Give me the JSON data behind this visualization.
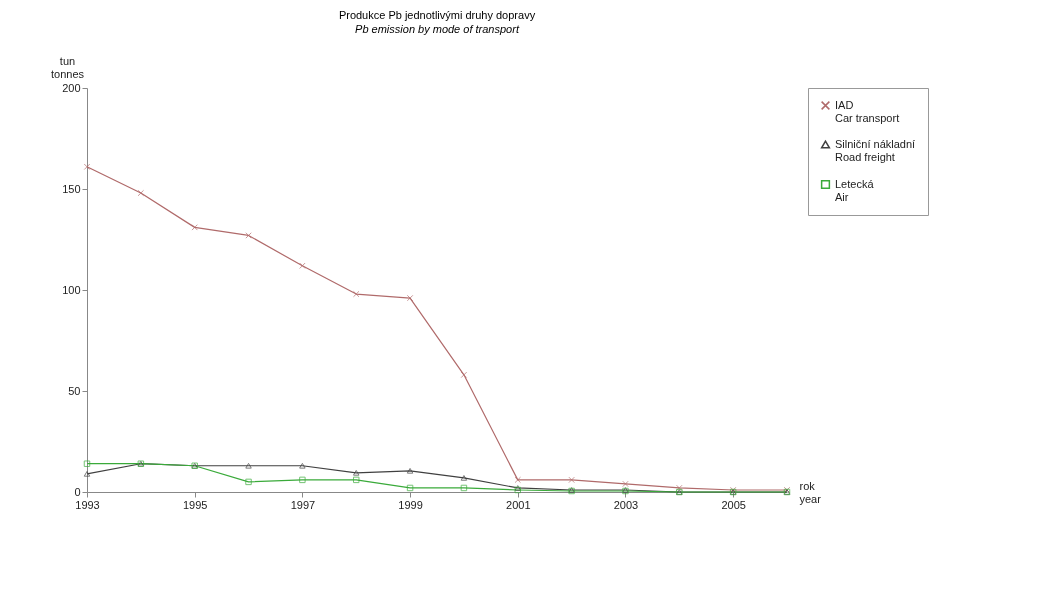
{
  "chart_data": {
    "type": "line",
    "title": "Produkce Pb jednotlivými druhy dopravy",
    "subtitle": "Pb emission by mode of transport",
    "xlabel": "rok\nyear",
    "ylabel": "tun\ntonnes",
    "x": [
      1993,
      1994,
      1995,
      1996,
      1997,
      1998,
      1999,
      2000,
      2001,
      2002,
      2003,
      2004,
      2005,
      2006
    ],
    "series": [
      {
        "name": "IAD\nCar transport",
        "color": "#b06a6a",
        "marker": "cross",
        "values": [
          161,
          148,
          131,
          127,
          112,
          98,
          96,
          58,
          6,
          6,
          4,
          2,
          1,
          1
        ]
      },
      {
        "name": "Silniční nákladní\nRoad freight",
        "color": "#404040",
        "marker": "triangle",
        "values": [
          9,
          14,
          13,
          13,
          13,
          9.5,
          10.5,
          7,
          2,
          1,
          1,
          0,
          0,
          0
        ]
      },
      {
        "name": "Letecká\nAir",
        "color": "#3aaa3a",
        "marker": "square",
        "values": [
          14,
          14,
          13,
          5,
          6,
          6,
          2,
          2,
          1,
          0.5,
          0.5,
          0,
          0,
          0
        ]
      }
    ],
    "xlim": [
      1993,
      2006
    ],
    "xticks": [
      1993,
      1995,
      1997,
      1999,
      2001,
      2003,
      2005
    ],
    "ylim": [
      0,
      200
    ],
    "yticks": [
      0,
      50,
      100,
      150,
      200
    ],
    "grid": false,
    "legend": "top right"
  }
}
